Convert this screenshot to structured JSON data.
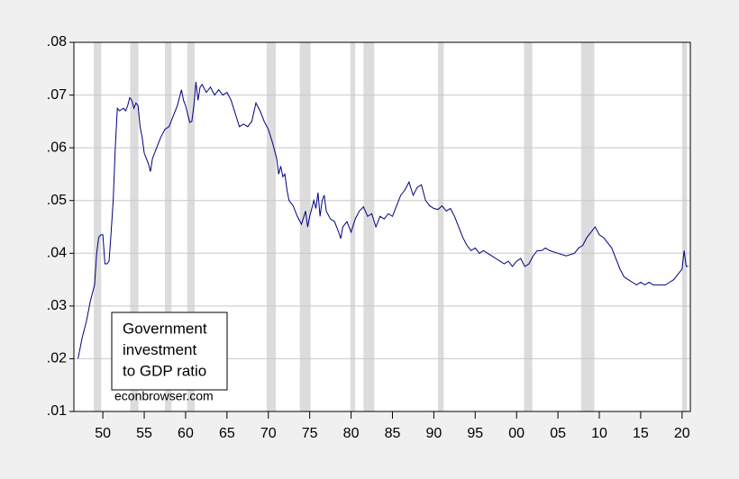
{
  "chart_data": {
    "type": "line",
    "annotation": [
      "Government",
      "investment",
      "to GDP ratio"
    ],
    "source": "econbrowser.com",
    "xlim": [
      1946.5,
      2021
    ],
    "ylim": [
      0.01,
      0.08
    ],
    "yticks": [
      {
        "value": 0.01,
        "label": ".01"
      },
      {
        "value": 0.02,
        "label": ".02"
      },
      {
        "value": 0.03,
        "label": ".03"
      },
      {
        "value": 0.04,
        "label": ".04"
      },
      {
        "value": 0.05,
        "label": ".05"
      },
      {
        "value": 0.06,
        "label": ".06"
      },
      {
        "value": 0.07,
        "label": ".07"
      },
      {
        "value": 0.08,
        "label": ".08"
      }
    ],
    "xticks": [
      {
        "value": 1950,
        "label": "50"
      },
      {
        "value": 1955,
        "label": "55"
      },
      {
        "value": 1960,
        "label": "60"
      },
      {
        "value": 1965,
        "label": "65"
      },
      {
        "value": 1970,
        "label": "70"
      },
      {
        "value": 1975,
        "label": "75"
      },
      {
        "value": 1980,
        "label": "80"
      },
      {
        "value": 1985,
        "label": "85"
      },
      {
        "value": 1990,
        "label": "90"
      },
      {
        "value": 1995,
        "label": "95"
      },
      {
        "value": 2000,
        "label": "00"
      },
      {
        "value": 2005,
        "label": "05"
      },
      {
        "value": 2010,
        "label": "10"
      },
      {
        "value": 2015,
        "label": "15"
      },
      {
        "value": 2020,
        "label": "20"
      }
    ],
    "grid": true,
    "recession_color": "#dcdcdc",
    "recessions": [
      [
        1948.9,
        1949.8
      ],
      [
        1953.3,
        1954.3
      ],
      [
        1957.5,
        1958.3
      ],
      [
        1960.2,
        1961.1
      ],
      [
        1969.8,
        1970.9
      ],
      [
        1973.8,
        1975.1
      ],
      [
        1979.9,
        1980.5
      ],
      [
        1981.5,
        1982.8
      ],
      [
        1990.5,
        1991.2
      ],
      [
        2000.9,
        2001.9
      ],
      [
        2007.8,
        2009.4
      ],
      [
        2020.0,
        2020.6
      ]
    ],
    "series": [
      {
        "color": "#000080",
        "x": [
          1947.0,
          1947.5,
          1948.0,
          1948.5,
          1949.0,
          1949.25,
          1949.5,
          1949.75,
          1950.0,
          1950.25,
          1950.5,
          1950.75,
          1951.0,
          1951.25,
          1951.5,
          1951.75,
          1952.0,
          1952.5,
          1952.75,
          1953.0,
          1953.25,
          1953.5,
          1953.75,
          1954.0,
          1954.25,
          1954.5,
          1954.75,
          1955.0,
          1955.5,
          1955.75,
          1956.0,
          1956.5,
          1957.0,
          1957.5,
          1958.0,
          1958.5,
          1959.0,
          1959.5,
          1959.75,
          1960.0,
          1960.5,
          1960.75,
          1961.0,
          1961.25,
          1961.5,
          1961.75,
          1962.0,
          1962.5,
          1963.0,
          1963.5,
          1964.0,
          1964.5,
          1965.0,
          1965.5,
          1966.0,
          1966.5,
          1967.0,
          1967.5,
          1968.0,
          1968.5,
          1969.0,
          1969.5,
          1970.0,
          1970.5,
          1971.0,
          1971.25,
          1971.5,
          1971.75,
          1972.0,
          1972.25,
          1972.5,
          1973.0,
          1973.5,
          1974.0,
          1974.5,
          1974.75,
          1975.0,
          1975.5,
          1975.75,
          1976.0,
          1976.25,
          1976.5,
          1976.75,
          1977.0,
          1977.5,
          1978.0,
          1978.5,
          1978.75,
          1979.0,
          1979.5,
          1980.0,
          1980.5,
          1981.0,
          1981.5,
          1982.0,
          1982.5,
          1983.0,
          1983.5,
          1984.0,
          1984.5,
          1985.0,
          1985.5,
          1986.0,
          1986.5,
          1987.0,
          1987.5,
          1988.0,
          1988.5,
          1989.0,
          1989.5,
          1990.0,
          1990.5,
          1991.0,
          1991.5,
          1992.0,
          1992.5,
          1993.0,
          1993.5,
          1994.0,
          1994.5,
          1995.0,
          1995.5,
          1996.0,
          1996.5,
          1997.0,
          1997.5,
          1998.0,
          1998.5,
          1999.0,
          1999.5,
          2000.0,
          2000.5,
          2001.0,
          2001.5,
          2002.0,
          2002.5,
          2003.0,
          2003.5,
          2004.0,
          2005.0,
          2006.0,
          2007.0,
          2007.5,
          2008.0,
          2008.5,
          2009.0,
          2009.5,
          2010.0,
          2010.5,
          2011.0,
          2011.5,
          2012.0,
          2012.5,
          2013.0,
          2013.5,
          2014.0,
          2014.5,
          2015.0,
          2015.5,
          2016.0,
          2016.5,
          2017.0,
          2018.0,
          2018.5,
          2019.0,
          2019.5,
          2020.0,
          2020.25,
          2020.5,
          2020.75
        ],
        "values": [
          0.02,
          0.024,
          0.027,
          0.031,
          0.034,
          0.04,
          0.043,
          0.0435,
          0.0435,
          0.038,
          0.038,
          0.0385,
          0.044,
          0.05,
          0.06,
          0.0675,
          0.067,
          0.0675,
          0.067,
          0.068,
          0.0695,
          0.069,
          0.0675,
          0.0685,
          0.068,
          0.064,
          0.062,
          0.059,
          0.057,
          0.0555,
          0.058,
          0.06,
          0.062,
          0.0635,
          0.064,
          0.066,
          0.068,
          0.071,
          0.069,
          0.068,
          0.0648,
          0.065,
          0.068,
          0.0725,
          0.069,
          0.0715,
          0.072,
          0.0705,
          0.0715,
          0.07,
          0.071,
          0.07,
          0.0705,
          0.069,
          0.0665,
          0.064,
          0.0645,
          0.064,
          0.065,
          0.0685,
          0.067,
          0.065,
          0.0635,
          0.061,
          0.058,
          0.055,
          0.0565,
          0.0545,
          0.055,
          0.052,
          0.05,
          0.049,
          0.047,
          0.0455,
          0.048,
          0.045,
          0.047,
          0.05,
          0.0485,
          0.0515,
          0.047,
          0.05,
          0.051,
          0.048,
          0.0465,
          0.046,
          0.044,
          0.0428,
          0.045,
          0.046,
          0.044,
          0.0465,
          0.048,
          0.0488,
          0.047,
          0.0475,
          0.045,
          0.047,
          0.0465,
          0.0475,
          0.047,
          0.049,
          0.051,
          0.052,
          0.0535,
          0.051,
          0.0525,
          0.053,
          0.05,
          0.049,
          0.0485,
          0.0483,
          0.049,
          0.048,
          0.0485,
          0.047,
          0.045,
          0.043,
          0.0415,
          0.0405,
          0.041,
          0.04,
          0.0405,
          0.04,
          0.0395,
          0.039,
          0.0385,
          0.038,
          0.0385,
          0.0375,
          0.0385,
          0.039,
          0.0375,
          0.038,
          0.0395,
          0.0405,
          0.0405,
          0.041,
          0.0405,
          0.04,
          0.0395,
          0.04,
          0.041,
          0.0415,
          0.043,
          0.044,
          0.045,
          0.0435,
          0.043,
          0.042,
          0.041,
          0.039,
          0.037,
          0.0355,
          0.035,
          0.0345,
          0.034,
          0.0345,
          0.034,
          0.0345,
          0.034,
          0.034,
          0.034,
          0.0345,
          0.035,
          0.036,
          0.037,
          0.0405,
          0.0375,
          0.0375
        ]
      }
    ]
  }
}
